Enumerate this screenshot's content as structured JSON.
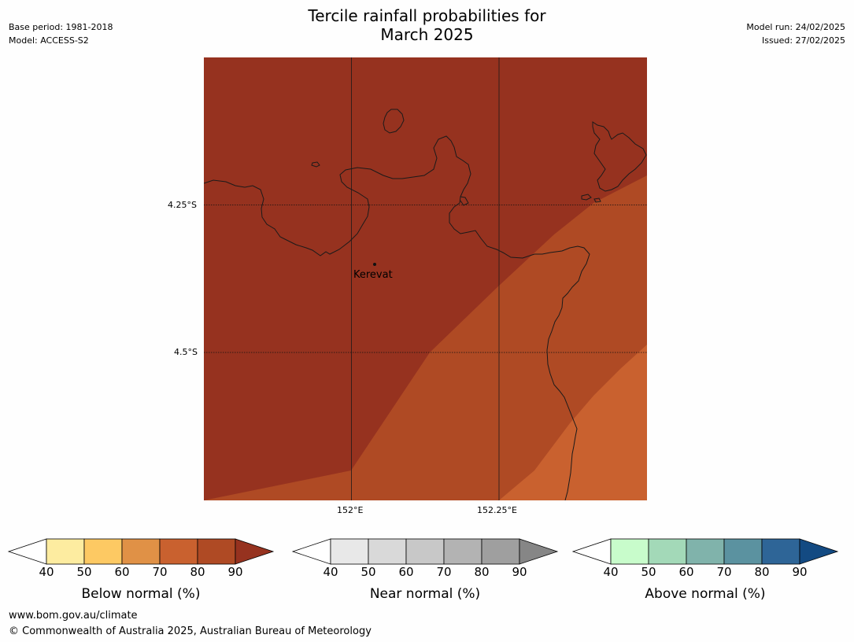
{
  "title_line1": "Tercile rainfall probabilities for",
  "title_line2": "March 2025",
  "meta_left": [
    "Base period: 1981-2018",
    "Model: ACCESS-S2"
  ],
  "meta_right": [
    "Model run: 24/02/2025",
    "Issued: 27/02/2025"
  ],
  "map": {
    "lat_labels": [
      "4.25°S",
      "4.5°S"
    ],
    "lon_labels": [
      "152°E",
      "152.25°E"
    ],
    "place": "Kerevat",
    "zone_colors": [
      "#96321f",
      "#af4a24",
      "#c9612f"
    ]
  },
  "colorbars": [
    {
      "label": "Below normal (%)",
      "ticks": [
        "40",
        "50",
        "60",
        "70",
        "80",
        "90"
      ],
      "colors": [
        "#fdeca0",
        "#fdc963",
        "#e09146",
        "#c9612f",
        "#af4a24"
      ],
      "extend_color": "#96321f"
    },
    {
      "label": "Near normal (%)",
      "ticks": [
        "40",
        "50",
        "60",
        "70",
        "80",
        "90"
      ],
      "colors": [
        "#e8e8e8",
        "#d9d9d9",
        "#c8c8c8",
        "#b3b3b3",
        "#9f9f9f"
      ],
      "extend_color": "#868686"
    },
    {
      "label": "Above normal (%)",
      "ticks": [
        "40",
        "50",
        "60",
        "70",
        "80",
        "90"
      ],
      "colors": [
        "#c8fccb",
        "#a3d9b8",
        "#80b3ab",
        "#5b92a0",
        "#2e6597"
      ],
      "extend_color": "#134a82"
    }
  ],
  "footer": [
    "www.bom.gov.au/climate",
    "© Commonwealth of Australia 2025, Australian Bureau of Meteorology"
  ]
}
